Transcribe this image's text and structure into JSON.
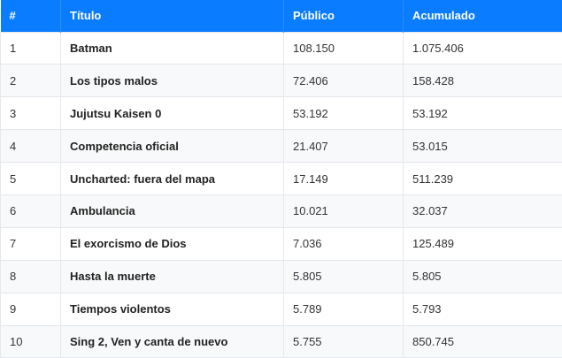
{
  "colors": {
    "header_bg": "#0a7cff",
    "header_text": "#ffffff",
    "row_alt_bg": "#f8f9fa",
    "border": "#e3e6ea"
  },
  "table": {
    "headers": {
      "rank": "#",
      "title": "Título",
      "public": "Público",
      "accumulated": "Acumulado"
    },
    "rows": [
      {
        "rank": "1",
        "title": "Batman",
        "public": "108.150",
        "accumulated": "1.075.406"
      },
      {
        "rank": "2",
        "title": "Los tipos malos",
        "public": "72.406",
        "accumulated": "158.428"
      },
      {
        "rank": "3",
        "title": "Jujutsu Kaisen 0",
        "public": "53.192",
        "accumulated": "53.192"
      },
      {
        "rank": "4",
        "title": "Competencia oficial",
        "public": "21.407",
        "accumulated": "53.015"
      },
      {
        "rank": "5",
        "title": "Uncharted: fuera del mapa",
        "public": "17.149",
        "accumulated": "511.239"
      },
      {
        "rank": "6",
        "title": "Ambulancia",
        "public": "10.021",
        "accumulated": "32.037"
      },
      {
        "rank": "7",
        "title": "El exorcismo de Dios",
        "public": "7.036",
        "accumulated": "125.489"
      },
      {
        "rank": "8",
        "title": "Hasta la muerte",
        "public": "5.805",
        "accumulated": "5.805"
      },
      {
        "rank": "9",
        "title": "Tiempos violentos",
        "public": "5.789",
        "accumulated": "5.793"
      },
      {
        "rank": "10",
        "title": "Sing 2, Ven y canta de nuevo",
        "public": "5.755",
        "accumulated": "850.745"
      }
    ]
  }
}
